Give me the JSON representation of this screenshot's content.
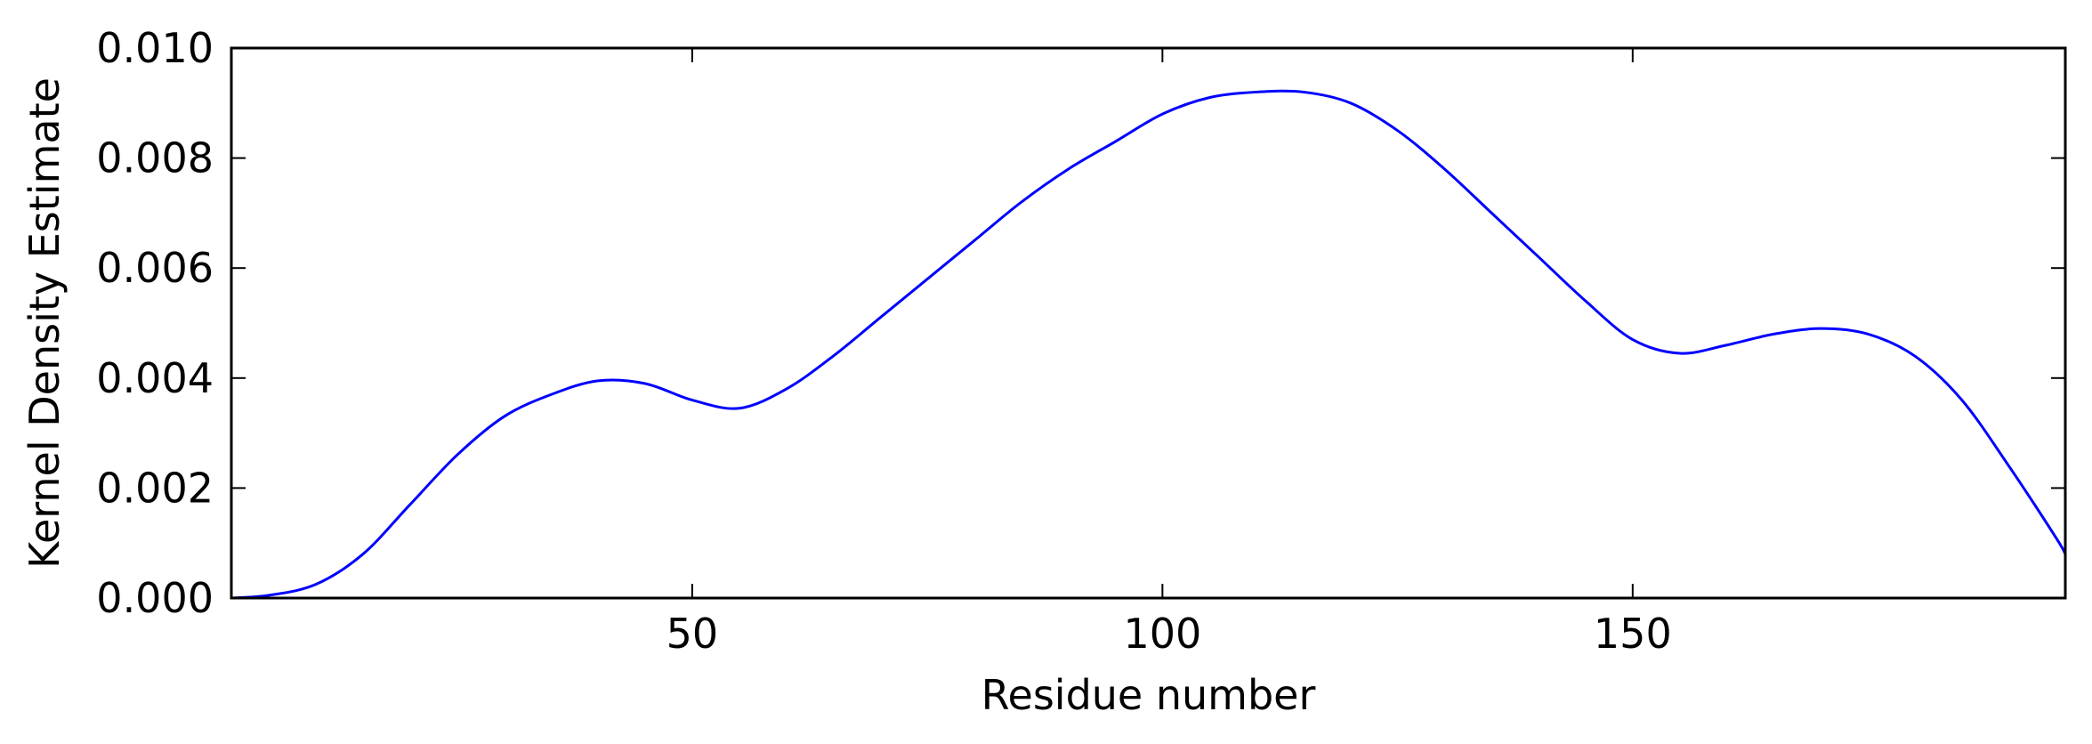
{
  "chart_data": {
    "type": "line",
    "title": "",
    "xlabel": "Residue number",
    "ylabel": "Kernel Density Estimate",
    "xlim": [
      1,
      196
    ],
    "ylim": [
      0.0,
      0.01
    ],
    "xticks": [
      50,
      100,
      150
    ],
    "xtick_labels": [
      "50",
      "100",
      "150"
    ],
    "yticks": [
      0.0,
      0.002,
      0.004,
      0.006,
      0.008,
      0.01
    ],
    "ytick_labels": [
      "0.000",
      "0.002",
      "0.004",
      "0.006",
      "0.008",
      "0.010"
    ],
    "grid": false,
    "legend": "none",
    "series": [
      {
        "color": "#0000ff",
        "x": [
          1,
          5,
          10,
          15,
          20,
          25,
          30,
          35,
          40,
          45,
          50,
          55,
          60,
          65,
          70,
          75,
          80,
          85,
          90,
          95,
          100,
          105,
          110,
          115,
          120,
          125,
          130,
          135,
          140,
          145,
          150,
          155,
          160,
          165,
          170,
          175,
          180,
          185,
          190,
          195,
          196
        ],
        "y": [
          0.0,
          5e-05,
          0.00025,
          0.0008,
          0.0017,
          0.0026,
          0.0033,
          0.0037,
          0.00395,
          0.0039,
          0.0036,
          0.00345,
          0.0038,
          0.0044,
          0.0051,
          0.0058,
          0.0065,
          0.0072,
          0.0078,
          0.0083,
          0.0088,
          0.0091,
          0.0092,
          0.0092,
          0.009,
          0.0085,
          0.0078,
          0.007,
          0.0062,
          0.0054,
          0.0047,
          0.00445,
          0.0046,
          0.0048,
          0.0049,
          0.0048,
          0.0044,
          0.0036,
          0.0024,
          0.0011,
          0.0008
        ]
      }
    ]
  }
}
